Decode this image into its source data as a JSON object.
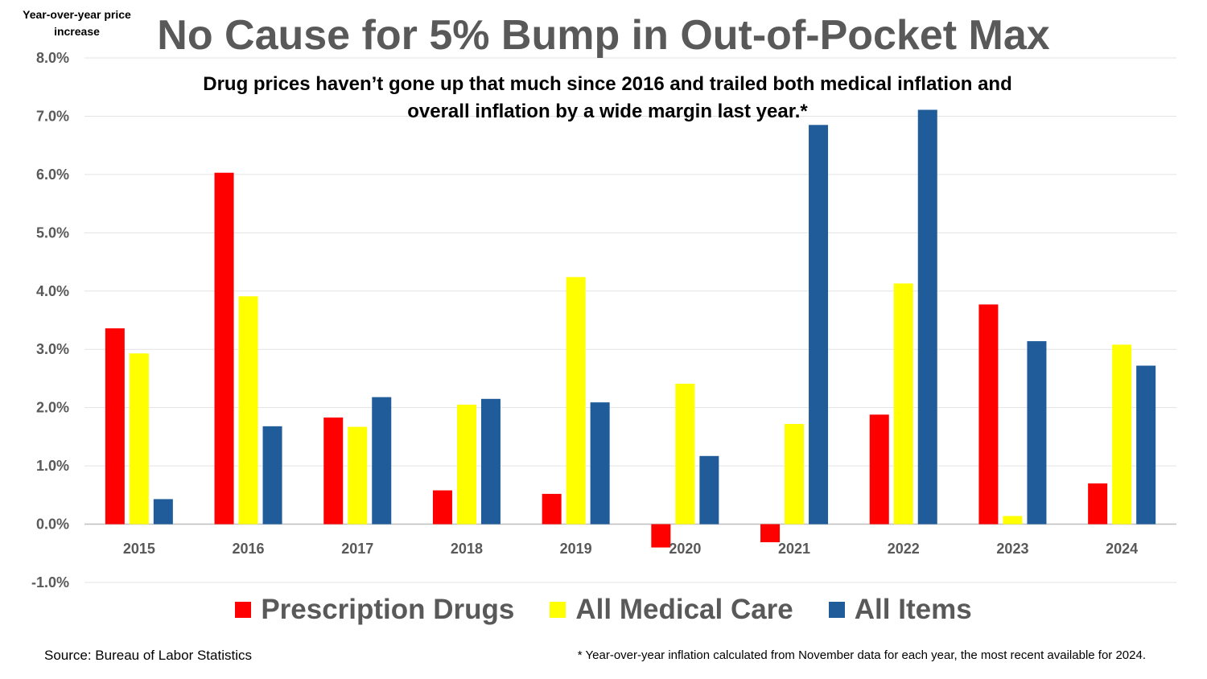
{
  "chart_data": {
    "type": "bar",
    "title": "No Cause for 5% Bump in Out-of-Pocket Max",
    "subtitle": "Drug prices haven’t gone up that much since 2016 and trailed both medical inflation and overall inflation by a wide margin last year.*",
    "ylabel": "Year-over-year price increase",
    "xlabel": "",
    "categories": [
      "2015",
      "2016",
      "2017",
      "2018",
      "2019",
      "2020",
      "2021",
      "2022",
      "2023",
      "2024"
    ],
    "series": [
      {
        "name": "Prescription Drugs",
        "color": "#ff0000",
        "values": [
          3.36,
          6.03,
          1.83,
          0.58,
          0.52,
          -0.4,
          -0.31,
          1.88,
          3.77,
          0.7
        ]
      },
      {
        "name": "All Medical Care",
        "color": "#ffff00",
        "values": [
          2.93,
          3.91,
          1.67,
          2.05,
          4.24,
          2.41,
          1.72,
          4.13,
          0.14,
          3.08
        ]
      },
      {
        "name": "All Items",
        "color": "#1f5c99",
        "values": [
          0.43,
          1.68,
          2.18,
          2.15,
          2.09,
          1.17,
          6.85,
          7.11,
          3.14,
          2.72
        ]
      }
    ],
    "ylim": [
      -1.0,
      8.0
    ],
    "yticks": [
      "-1.0%",
      "0.0%",
      "1.0%",
      "2.0%",
      "3.0%",
      "4.0%",
      "5.0%",
      "6.0%",
      "7.0%",
      "8.0%"
    ],
    "grid": true,
    "legend_position": "bottom"
  },
  "source": "Source: Bureau of Labor Statistics",
  "footnote": "* Year-over-year inflation calculated from November data for each year, the most recent available for 2024."
}
